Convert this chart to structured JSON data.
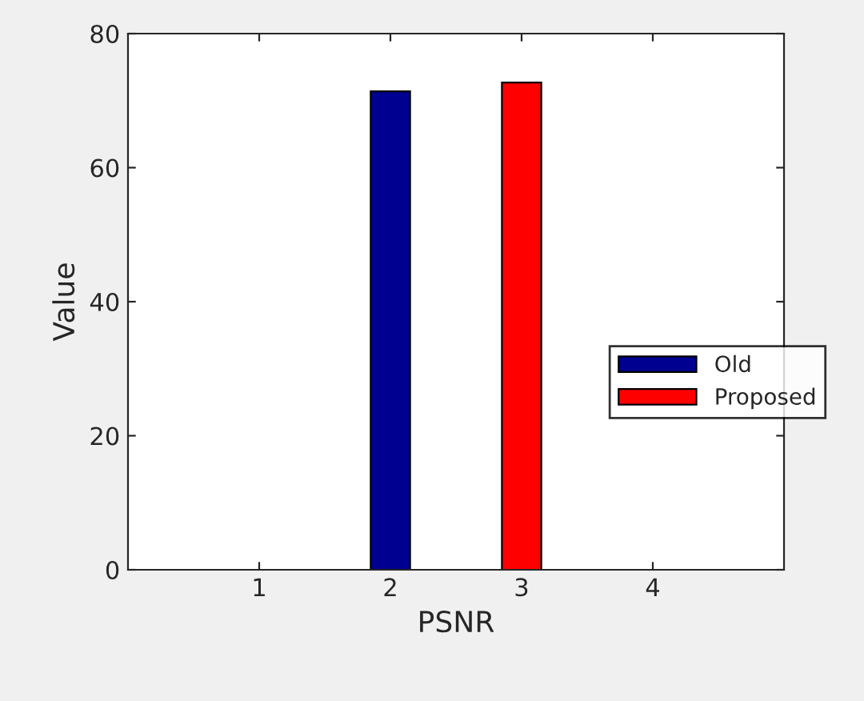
{
  "chart_data": {
    "type": "bar",
    "xlabel": "PSNR",
    "ylabel": "Value",
    "series": [
      {
        "name": "Old",
        "color": "#000090",
        "x": [
          2
        ],
        "values": [
          71.4
        ]
      },
      {
        "name": "Proposed",
        "color": "#ff0000",
        "x": [
          3
        ],
        "values": [
          72.7
        ]
      }
    ],
    "xlim": [
      0,
      5
    ],
    "xticks": [
      1,
      2,
      3,
      4
    ],
    "ylim": [
      0,
      80
    ],
    "yticks": [
      0,
      20,
      40,
      60,
      80
    ],
    "grid": false,
    "legend": "right"
  }
}
